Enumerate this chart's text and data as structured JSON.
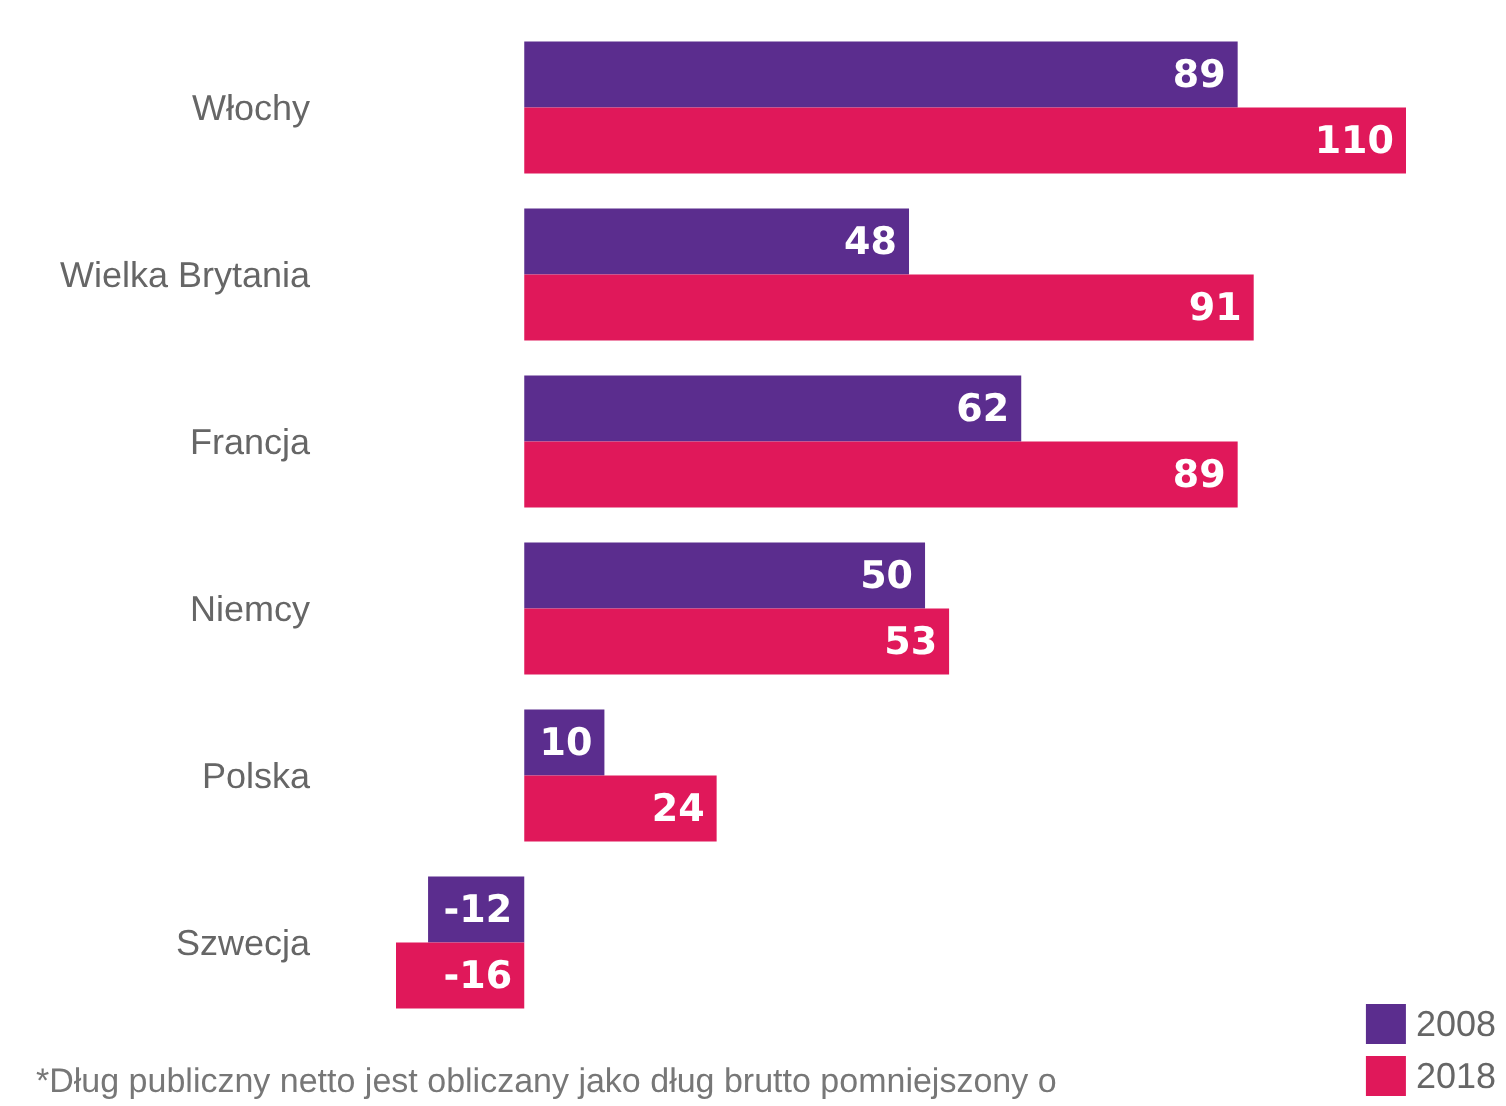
{
  "chart_data": {
    "type": "bar",
    "orientation": "horizontal",
    "categories": [
      "Włochy",
      "Wielka Brytania",
      "Francja",
      "Niemcy",
      "Polska",
      "Szwecja"
    ],
    "series": [
      {
        "name": "2008",
        "color": "#5b2d8e",
        "values": [
          89,
          48,
          62,
          50,
          10,
          -12
        ]
      },
      {
        "name": "2018",
        "color": "#e0185a",
        "values": [
          110,
          91,
          89,
          53,
          24,
          -16
        ]
      }
    ],
    "data_labels": true,
    "legend": "bottom right",
    "annotations": [
      "*Dług publiczny netto jest obliczany jako dług brutto pomniejszony o"
    ]
  }
}
